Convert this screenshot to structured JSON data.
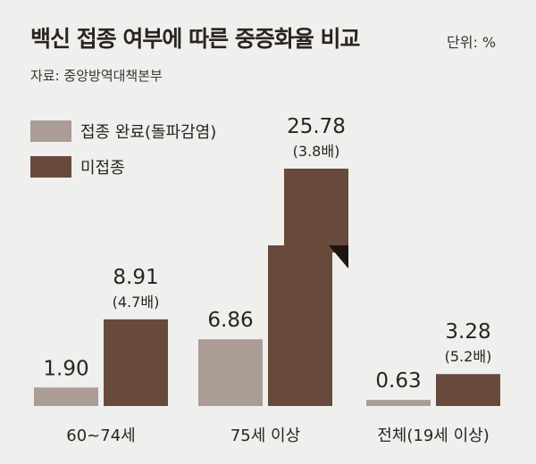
{
  "title": "백신 접종 여부에 따른 중증화율 비교",
  "unit_label": "단위: %",
  "source": "자료: 중앙방역대책본부",
  "legend": [
    {
      "label": "접종 완료(돌파감염)",
      "color": "#ab9c95"
    },
    {
      "label": "미접종",
      "color": "#684a3d"
    }
  ],
  "chart_data": {
    "type": "bar",
    "title": "백신 접종 여부에 따른 중증화율 비교",
    "xlabel": "",
    "ylabel": "",
    "categories": [
      "60~74세",
      "75세 이상",
      "전체(19세 이상)"
    ],
    "series": [
      {
        "name": "접종 완료(돌파감염)",
        "values": [
          1.9,
          6.86,
          0.63
        ],
        "color": "#ab9c95"
      },
      {
        "name": "미접종",
        "values": [
          8.91,
          25.78,
          3.28
        ],
        "color": "#684a3d"
      }
    ],
    "value_labels": {
      "vaccinated": [
        "1.90",
        "6.86",
        "0.63"
      ],
      "unvaccinated": [
        "8.91",
        "25.78",
        "3.28"
      ]
    },
    "ratio_labels": [
      "(4.7배)",
      "(3.8배)",
      "(5.2배)"
    ],
    "unit": "%",
    "grid": false
  }
}
